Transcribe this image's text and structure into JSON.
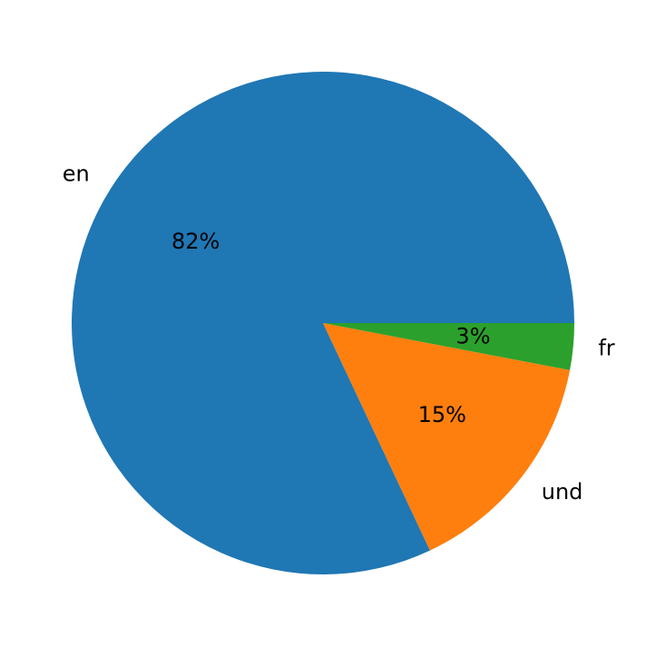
{
  "chart_data": {
    "type": "pie",
    "categories": [
      "en",
      "und",
      "fr"
    ],
    "values": [
      82,
      15,
      3
    ],
    "value_labels": [
      "82%",
      "15%",
      "3%"
    ],
    "colors": [
      "#1f77b4",
      "#ff7f0e",
      "#2ca02c"
    ]
  }
}
